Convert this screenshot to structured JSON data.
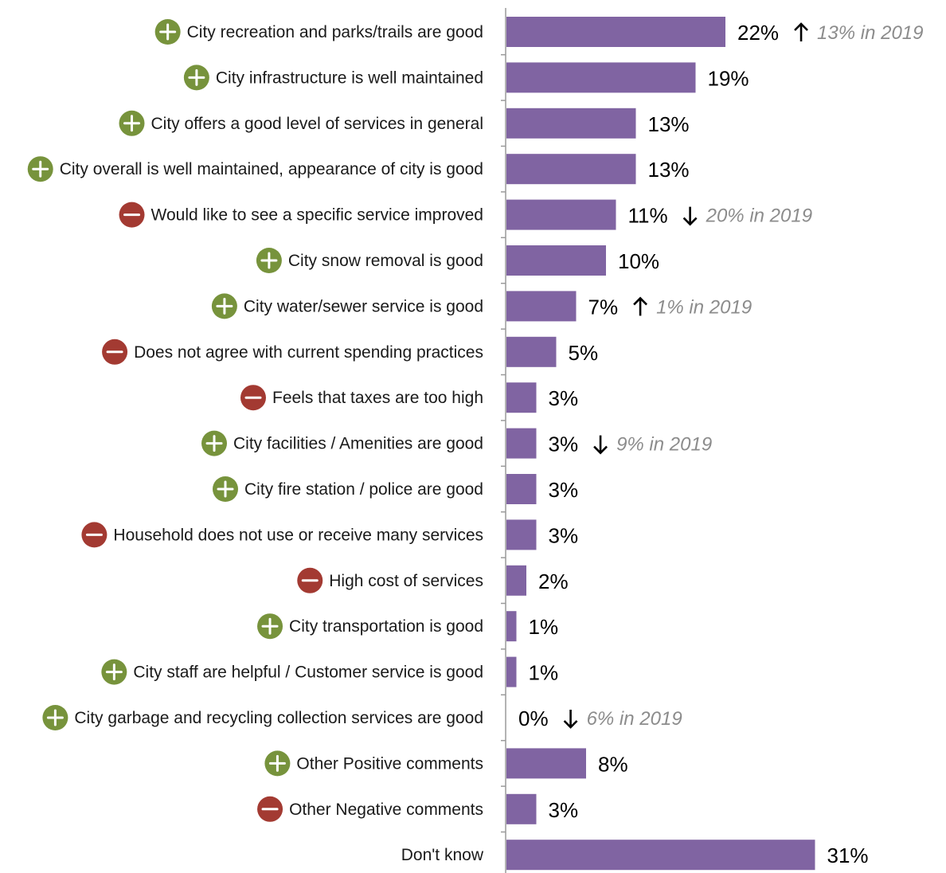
{
  "chart_data": {
    "type": "bar",
    "orientation": "horizontal",
    "xlim": [
      0,
      35
    ],
    "grid": false,
    "legend": "none",
    "bar_color": "#8064a2",
    "positive_color": "#77933c",
    "negative_color": "#a33a32",
    "categories": [
      "City recreation and parks/trails are good",
      "City infrastructure is well maintained",
      "City offers a good level of services in general",
      "City overall is well maintained, appearance of city is good",
      "Would like to see a specific service improved",
      "City snow removal is good",
      "City water/sewer service is good",
      "Does not agree with current spending practices",
      "Feels that taxes are too high",
      "City facilities / Amenities are good",
      "City fire station / police are good",
      "Household does not use or receive many services",
      "High cost of services",
      "City transportation is good",
      "City staff are helpful / Customer service is good",
      "City garbage and recycling collection services are good",
      "Other Positive comments",
      "Other Negative comments",
      "Don't know"
    ],
    "values": [
      22,
      19,
      13,
      13,
      11,
      10,
      7,
      5,
      3,
      3,
      3,
      3,
      2,
      1,
      1,
      0,
      8,
      3,
      31
    ],
    "value_labels": [
      "22%",
      "19%",
      "13%",
      "13%",
      "11%",
      "10%",
      "7%",
      "5%",
      "3%",
      "3%",
      "3%",
      "3%",
      "2%",
      "1%",
      "1%",
      "0%",
      "8%",
      "3%",
      "31%"
    ],
    "sentiment": [
      "positive",
      "positive",
      "positive",
      "positive",
      "negative",
      "positive",
      "positive",
      "negative",
      "negative",
      "positive",
      "positive",
      "negative",
      "negative",
      "positive",
      "positive",
      "positive",
      "positive",
      "negative",
      "none"
    ],
    "comparisons": [
      {
        "index": 0,
        "direction": "up",
        "text": "13% in 2019"
      },
      {
        "index": 4,
        "direction": "down",
        "text": "20% in 2019"
      },
      {
        "index": 6,
        "direction": "up",
        "text": "1% in 2019"
      },
      {
        "index": 9,
        "direction": "down",
        "text": "9% in 2019"
      },
      {
        "index": 15,
        "direction": "down",
        "text": "6% in 2019"
      }
    ]
  }
}
